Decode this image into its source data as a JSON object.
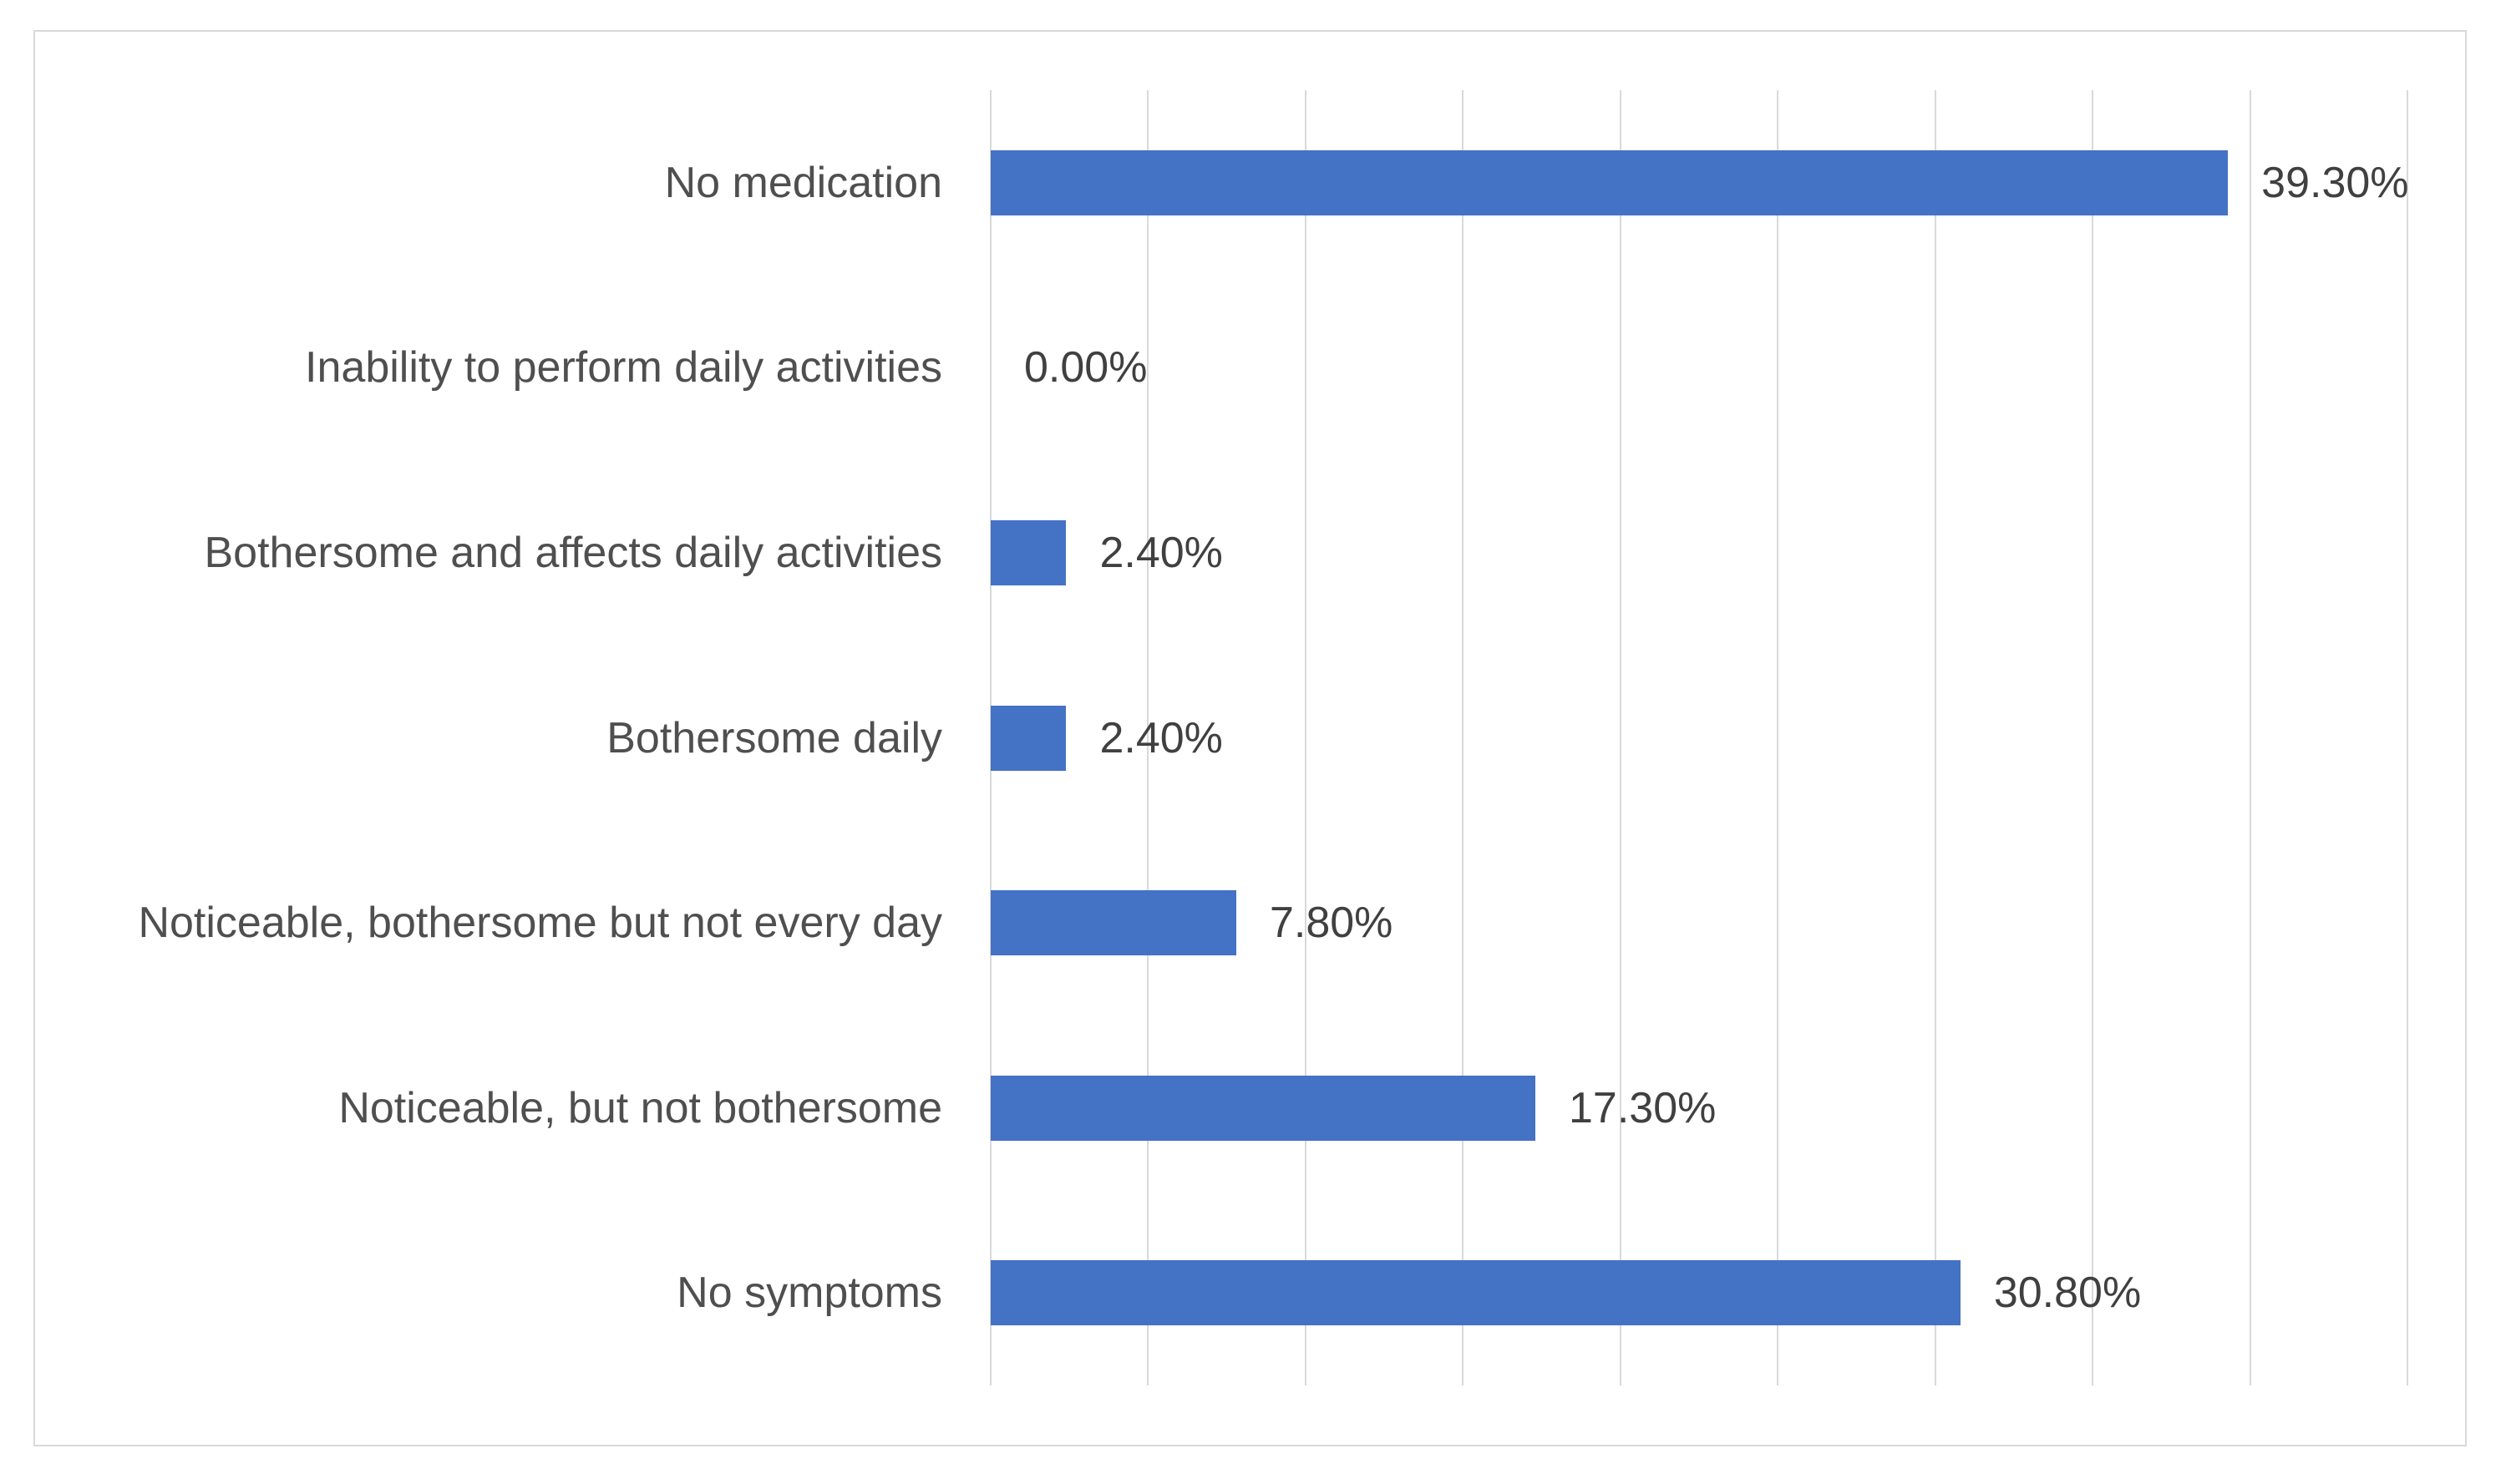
{
  "chart_data": {
    "type": "bar",
    "orientation": "horizontal",
    "title": "",
    "xlabel": "",
    "ylabel": "",
    "categories": [
      "No medication",
      "Inability to perform daily activities",
      "Bothersome and affects daily activities",
      "Bothersome daily",
      "Noticeable, bothersome but not every day",
      "Noticeable, but not bothersome",
      "No symptoms"
    ],
    "values": [
      39.3,
      0.0,
      2.4,
      2.4,
      7.8,
      17.3,
      30.8
    ],
    "value_labels": [
      "39.30%",
      "0.00%",
      "2.40%",
      "2.40%",
      "7.80%",
      "17.30%",
      "30.80%"
    ],
    "xlim": [
      0,
      45
    ],
    "gridline_interval": 5,
    "grid": true,
    "legend": false,
    "data_labels": "outside-end",
    "colors": {
      "bar": "#4472c4",
      "gridline": "#d9d9d9",
      "frame_border": "#d9d9d9",
      "category_text": "#4f4f4f",
      "value_text": "#404040",
      "background": "#ffffff"
    }
  }
}
